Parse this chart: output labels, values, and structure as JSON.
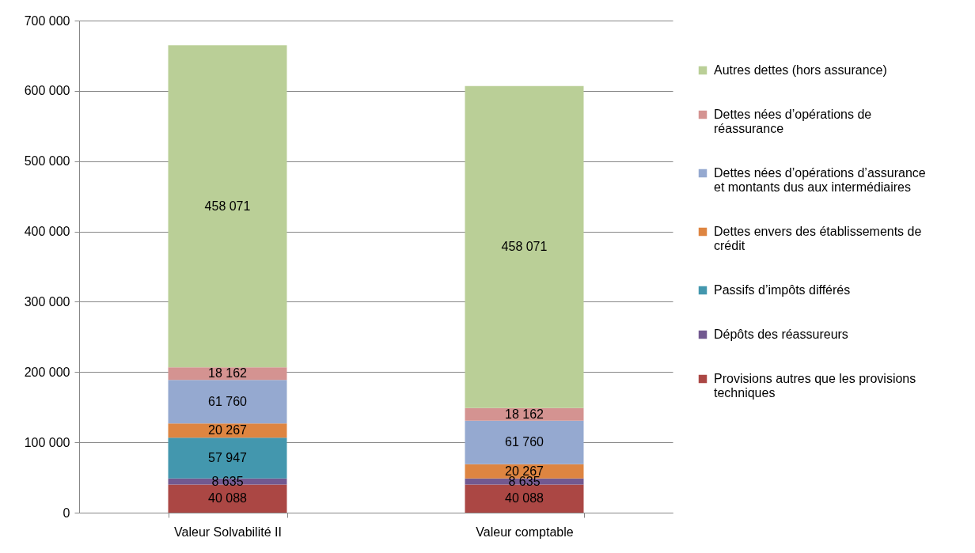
{
  "chart_data": {
    "type": "bar",
    "stacked": true,
    "categories": [
      "Valeur Solvabilité II",
      "Valeur comptable"
    ],
    "series": [
      {
        "name": "Provisions autres que les provisions techniques",
        "color": "#ab4744",
        "values": [
          40088,
          40088
        ]
      },
      {
        "name": "Dépôts des réassureurs",
        "color": "#725990",
        "values": [
          8635,
          8635
        ]
      },
      {
        "name": "Passifs d’impôts différés",
        "color": "#4397ae",
        "values": [
          57947,
          null
        ]
      },
      {
        "name": "Dettes envers des établissements de crédit",
        "color": "#de8541",
        "values": [
          20267,
          20267
        ]
      },
      {
        "name": "Dettes nées d’opérations d’assurance et montants dus aux intermédiaires",
        "color": "#95a9d0",
        "values": [
          61760,
          61760
        ]
      },
      {
        "name": "Dettes nées d’opérations de réassurance",
        "color": "#d49391",
        "values": [
          18162,
          18162
        ]
      },
      {
        "name": "Autres dettes (hors assurance)",
        "color": "#bacf97",
        "values": [
          458071,
          458071
        ]
      }
    ],
    "ylim": [
      0,
      700000
    ],
    "yticks": [
      0,
      100000,
      200000,
      300000,
      400000,
      500000,
      600000,
      700000
    ],
    "grid": "y",
    "legend": "right",
    "data_labels": true
  }
}
